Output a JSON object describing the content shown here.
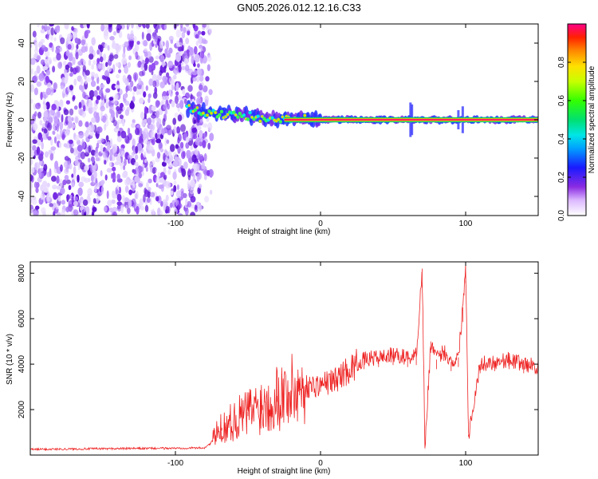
{
  "title": "GN05.2026.012.12.16.C33",
  "colors": {
    "snr_line": "#ee2222",
    "ridge": "#ff2060",
    "noise": "#6a1be0"
  },
  "chart_data": [
    {
      "type": "heatmap",
      "name": "spectrogram",
      "xlabel": "Height of straight line (km)",
      "ylabel": "Frequency (Hz)",
      "xlim": [
        -200,
        150
      ],
      "ylim": [
        -50,
        50
      ],
      "x_ticks": [
        {
          "value": -100,
          "label": "-100"
        },
        {
          "value": 0,
          "label": "0"
        },
        {
          "value": 100,
          "label": "100"
        }
      ],
      "y_ticks": [
        {
          "value": -40,
          "label": "-40"
        },
        {
          "value": -20,
          "label": "-20"
        },
        {
          "value": 0,
          "label": "0"
        },
        {
          "value": 20,
          "label": "20"
        },
        {
          "value": 40,
          "label": "40"
        }
      ],
      "noise_region_x": [
        -200,
        -78
      ],
      "ridge": {
        "x": [
          -92,
          -80,
          -70,
          -60,
          -50,
          -40,
          -30,
          -20,
          -12,
          0,
          50,
          100,
          150
        ],
        "freq": [
          6,
          4,
          3,
          3,
          2,
          1,
          0,
          1,
          1,
          0,
          0,
          0,
          0
        ]
      },
      "colorbar": {
        "label": "Normalized spectral amplitude",
        "range": [
          0,
          1
        ],
        "ticks": [
          {
            "value": 0.0,
            "label": "0.0"
          },
          {
            "value": 0.2,
            "label": "0.2"
          },
          {
            "value": 0.4,
            "label": "0.4"
          },
          {
            "value": 0.6,
            "label": "0.6"
          },
          {
            "value": 0.8,
            "label": "0.8"
          }
        ]
      }
    },
    {
      "type": "line",
      "name": "snr",
      "xlabel": "Height of straight line (km)",
      "ylabel": "SNR (10 * v/v)",
      "xlim": [
        -200,
        150
      ],
      "ylim": [
        0,
        8500
      ],
      "x_ticks": [
        {
          "value": -100,
          "label": "-100"
        },
        {
          "value": 0,
          "label": "0"
        },
        {
          "value": 100,
          "label": "100"
        }
      ],
      "y_ticks": [
        {
          "value": 2000,
          "label": "2000"
        },
        {
          "value": 4000,
          "label": "4000"
        },
        {
          "value": 6000,
          "label": "6000"
        },
        {
          "value": 8000,
          "label": "8000"
        }
      ],
      "series": [
        {
          "name": "SNR",
          "x": [
            -200,
            -150,
            -100,
            -80,
            -76,
            -72,
            -68,
            -60,
            -50,
            -40,
            -30,
            -20,
            -10,
            0,
            10,
            20,
            30,
            40,
            50,
            60,
            66,
            70,
            72,
            76,
            80,
            85,
            90,
            95,
            98,
            100,
            102,
            110,
            120,
            130,
            140,
            150
          ],
          "y": [
            250,
            280,
            300,
            320,
            500,
            900,
            1200,
            1500,
            1900,
            2200,
            2600,
            2800,
            3000,
            3100,
            3300,
            3800,
            4200,
            4300,
            4400,
            4300,
            4400,
            8200,
            300,
            5000,
            4200,
            4600,
            4100,
            4300,
            6500,
            8400,
            900,
            4000,
            4100,
            4200,
            4000,
            3900
          ]
        }
      ]
    }
  ]
}
